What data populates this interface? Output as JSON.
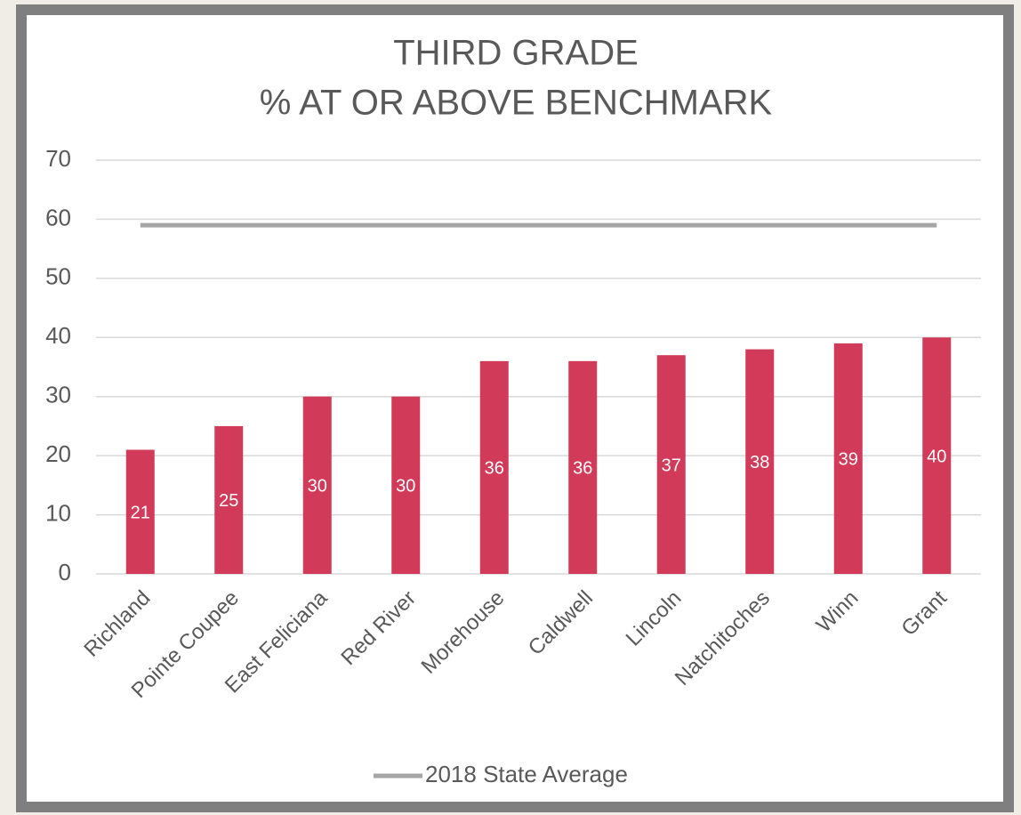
{
  "chart_data": {
    "type": "bar",
    "title": [
      "THIRD GRADE",
      "% AT OR ABOVE BENCHMARK"
    ],
    "categories": [
      "Richland",
      "Pointe Coupee",
      "East Feliciana",
      "Red River",
      "Morehouse",
      "Caldwell",
      "Lincoln",
      "Natchitoches",
      "Winn",
      "Grant"
    ],
    "series": [
      {
        "type": "bar",
        "color": "#d13a58",
        "values": [
          21,
          25,
          30,
          30,
          36,
          36,
          37,
          38,
          39,
          40
        ]
      },
      {
        "type": "line",
        "name": "2018 State Average",
        "color": "#a6a6a6",
        "values": [
          59,
          59,
          59,
          59,
          59,
          59,
          59,
          59,
          59,
          59
        ]
      }
    ],
    "ylim": [
      0,
      70
    ],
    "yticks": [
      0,
      10,
      20,
      30,
      40,
      50,
      60,
      70
    ],
    "grid": true,
    "legend": "bottom"
  }
}
